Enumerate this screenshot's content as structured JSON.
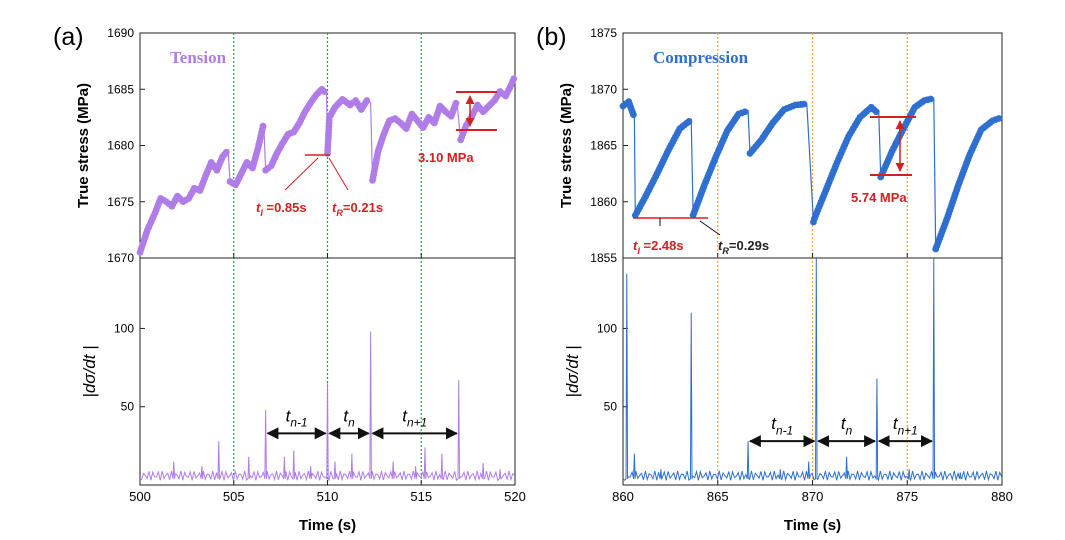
{
  "chart_data": [
    {
      "type": "line",
      "panel_label": "(a)",
      "mode_label": "Tension",
      "mode_color": "#b07de8",
      "xlabel": "Time (s)",
      "xlim": [
        500,
        520
      ],
      "xticks": [
        500,
        505,
        510,
        515,
        520
      ],
      "vlines": [
        505,
        510,
        515
      ],
      "vline_color": "#2e9a3a",
      "top": {
        "ylabel": "True stress (MPa)",
        "ylim": [
          1670,
          1690
        ],
        "yticks": [
          1670,
          1675,
          1680,
          1685,
          1690
        ],
        "series": [
          {
            "x": [
              500.0,
              500.4,
              500.8,
              501.1,
              501.4,
              501.7,
              502.0,
              502.3,
              502.6,
              502.9,
              503.2,
              503.5,
              503.8,
              504.1,
              504.4,
              504.7,
              504.8,
              505.1,
              505.4,
              505.7,
              506.0,
              506.3,
              506.6,
              506.7,
              507.0,
              507.3,
              507.6,
              507.9,
              508.2,
              508.5,
              508.8,
              509.1,
              509.4,
              509.7,
              509.95,
              510.0,
              510.1,
              510.4,
              510.8,
              511.2,
              511.5,
              511.8,
              512.1,
              512.3,
              512.4,
              512.7,
              513.0,
              513.3,
              513.6,
              513.9,
              514.2,
              514.5,
              514.8,
              515.1,
              515.4,
              515.7,
              516.0,
              516.3,
              516.6,
              516.9,
              517.1,
              517.4,
              517.7,
              518.0,
              518.3,
              518.6,
              518.9,
              519.2,
              519.5,
              519.8,
              520.0
            ],
            "y": [
              1670.5,
              1672.5,
              1674.0,
              1675.3,
              1675.0,
              1674.6,
              1675.5,
              1675.0,
              1675.3,
              1676.2,
              1676.0,
              1677.3,
              1678.5,
              1677.8,
              1679.0,
              1679.6,
              1676.8,
              1676.5,
              1677.5,
              1678.5,
              1678.0,
              1679.8,
              1682.0,
              1677.8,
              1678.2,
              1679.3,
              1680.2,
              1681.0,
              1681.2,
              1682.0,
              1683.0,
              1683.8,
              1684.5,
              1685.0,
              1684.6,
              1679.3,
              1682.5,
              1683.4,
              1684.1,
              1683.6,
              1684.0,
              1683.2,
              1684.0,
              1683.8,
              1676.9,
              1679.5,
              1681.0,
              1682.2,
              1682.4,
              1682.0,
              1681.5,
              1682.8,
              1682.2,
              1681.6,
              1682.5,
              1682.0,
              1683.5,
              1683.0,
              1682.6,
              1684.0,
              1680.5,
              1681.8,
              1682.6,
              1683.6,
              1683.0,
              1683.5,
              1684.0,
              1684.8,
              1684.4,
              1685.4,
              1686.2
            ]
          }
        ],
        "annotations": [
          {
            "label": "t",
            "sub": "I",
            "rest": " =0.85s",
            "color": "#d42020"
          },
          {
            "label": "t",
            "sub": "R",
            "rest": "=0.21s",
            "color": "#d42020"
          },
          {
            "text": "3.10 MPa",
            "color": "#d42020"
          }
        ]
      },
      "bottom": {
        "ylabel": "|dσ/dt |",
        "ylim": [
          0,
          145
        ],
        "yticks": [
          50,
          100
        ],
        "spikes": [
          [
            501.8,
            15
          ],
          [
            503.3,
            12
          ],
          [
            504.2,
            28
          ],
          [
            505.8,
            18
          ],
          [
            506.7,
            48
          ],
          [
            507.7,
            18
          ],
          [
            508.2,
            22
          ],
          [
            509.1,
            12
          ],
          [
            510.0,
            65
          ],
          [
            510.4,
            15
          ],
          [
            511.3,
            20
          ],
          [
            512.3,
            98
          ],
          [
            513.5,
            15
          ],
          [
            514.7,
            12
          ],
          [
            515.2,
            24
          ],
          [
            516.1,
            20
          ],
          [
            517.0,
            67
          ],
          [
            518.3,
            14
          ],
          [
            519.2,
            10
          ]
        ],
        "intervals": [
          {
            "t": "t",
            "sub": "n-1",
            "x": [
              506.7,
              510.0
            ],
            "y": 33
          },
          {
            "t": "t",
            "sub": "n",
            "x": [
              510.0,
              512.3
            ],
            "y": 33
          },
          {
            "t": "t",
            "sub": "n+1",
            "x": [
              512.3,
              517.0
            ],
            "y": 33
          }
        ]
      }
    },
    {
      "type": "line",
      "panel_label": "(b)",
      "mode_label": "Compression",
      "mode_color": "#2e6fd0",
      "xlabel": "Time (s)",
      "xlim": [
        860,
        880
      ],
      "xticks": [
        860,
        865,
        870,
        875,
        880
      ],
      "vlines": [
        865,
        870,
        875
      ],
      "vline_color": "#f0a040",
      "top": {
        "ylabel": "True stress (MPa)",
        "ylim": [
          1855,
          1875
        ],
        "yticks": [
          1855,
          1860,
          1865,
          1870,
          1875
        ],
        "series": [
          {
            "x": [
              860.0,
              860.3,
              860.6,
              860.65,
              861.2,
              861.8,
              862.4,
              863.0,
              863.6,
              863.7,
              864.3,
              864.9,
              865.5,
              866.1,
              866.6,
              866.7,
              867.3,
              867.9,
              868.5,
              869.1,
              869.7,
              870.05,
              870.1,
              870.7,
              871.3,
              871.9,
              872.5,
              873.1,
              873.5,
              873.6,
              874.2,
              874.8,
              875.4,
              875.9,
              876.4,
              876.5,
              877.1,
              877.7,
              878.3,
              878.9,
              879.5,
              880.0
            ],
            "y": [
              1868.5,
              1868.9,
              1867.5,
              1858.8,
              1860.5,
              1862.5,
              1864.6,
              1866.5,
              1867.3,
              1858.8,
              1861.5,
              1864.0,
              1866.3,
              1867.8,
              1868.1,
              1864.3,
              1865.5,
              1867.0,
              1868.2,
              1868.6,
              1868.7,
              1858.2,
              1858.5,
              1861.0,
              1863.5,
              1865.8,
              1867.5,
              1868.4,
              1867.8,
              1862.2,
              1864.5,
              1866.5,
              1868.4,
              1869.0,
              1869.2,
              1855.8,
              1858.5,
              1861.5,
              1864.2,
              1866.4,
              1867.2,
              1867.5
            ]
          }
        ],
        "annotations": [
          {
            "label": "t",
            "sub": "I",
            "rest": " =2.48s",
            "color": "#d42020"
          },
          {
            "label": "t",
            "sub": "R",
            "rest": "=0.29s",
            "color": "#222222"
          },
          {
            "text": "5.74 MPa",
            "color": "#d42020"
          }
        ]
      },
      "bottom": {
        "ylabel": "|dσ/dt |",
        "ylim": [
          0,
          145
        ],
        "yticks": [
          50,
          100
        ],
        "spikes": [
          [
            860.2,
            135
          ],
          [
            860.6,
            20
          ],
          [
            862.0,
            10
          ],
          [
            863.6,
            110
          ],
          [
            866.6,
            28
          ],
          [
            868.3,
            10
          ],
          [
            869.8,
            15
          ],
          [
            870.2,
            145
          ],
          [
            871.8,
            18
          ],
          [
            873.4,
            68
          ],
          [
            875.1,
            10
          ],
          [
            876.4,
            145
          ],
          [
            877.8,
            8
          ]
        ],
        "intervals": [
          {
            "t": "t",
            "sub": "n-1",
            "x": [
              866.6,
              870.2
            ],
            "y": 28
          },
          {
            "t": "t",
            "sub": "n",
            "x": [
              870.2,
              873.4
            ],
            "y": 28
          },
          {
            "t": "t",
            "sub": "n+1",
            "x": [
              873.4,
              876.4
            ],
            "y": 28
          }
        ]
      }
    }
  ]
}
